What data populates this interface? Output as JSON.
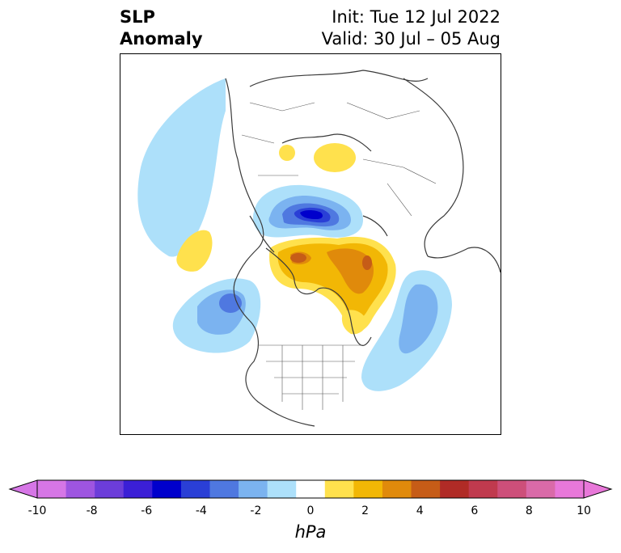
{
  "title": {
    "left_line1": "SLP",
    "left_line2": "Anomaly",
    "init": "Init: Tue 12 Jul 2022",
    "valid": "Valid: 30 Jul – 05 Aug"
  },
  "colorbar": {
    "unit": "hPa",
    "tick_labels": [
      "-10",
      "-8",
      "-6",
      "-4",
      "-2",
      "0",
      "2",
      "4",
      "6",
      "8",
      "10"
    ],
    "levels": [
      -10,
      -9,
      -8,
      -7,
      -6,
      -5,
      -4,
      -3,
      -2,
      -1,
      1,
      2,
      3,
      4,
      5,
      6,
      7,
      8,
      9,
      10
    ],
    "colors": [
      "#d676e6",
      "#9e55e0",
      "#6c3dd9",
      "#3b1fd6",
      "#0000cc",
      "#2a3fd6",
      "#4f78e0",
      "#7bb3f0",
      "#ade0fa",
      "#ffffff",
      "#ffe14d",
      "#f2b705",
      "#e08a0b",
      "#c65c17",
      "#b02b26",
      "#c03a4e",
      "#cd4f7a",
      "#d96aa8",
      "#e878d9"
    ],
    "extend_min_color": "#d676e6",
    "extend_max_color": "#e878d9"
  },
  "map": {
    "projection": "north polar stereographic",
    "anomalies": [
      {
        "region": "North Pacific / Bering",
        "sign": "negative",
        "peak_hPa": -2
      },
      {
        "region": "Siberia",
        "sign": "positive",
        "peak_hPa": 2
      },
      {
        "region": "Arctic Ocean (Kara/Laptev)",
        "sign": "negative",
        "peak_hPa": -6
      },
      {
        "region": "Greenland / Canadian Archipelago",
        "sign": "positive",
        "peak_hPa": 4
      },
      {
        "region": "Gulf of Alaska",
        "sign": "negative",
        "peak_hPa": -4
      },
      {
        "region": "Aleutians",
        "sign": "positive",
        "peak_hPa": 2
      },
      {
        "region": "North Atlantic",
        "sign": "negative",
        "peak_hPa": -3
      },
      {
        "region": "Hudson Bay / Labrador",
        "sign": "positive",
        "peak_hPa": 2
      }
    ]
  }
}
